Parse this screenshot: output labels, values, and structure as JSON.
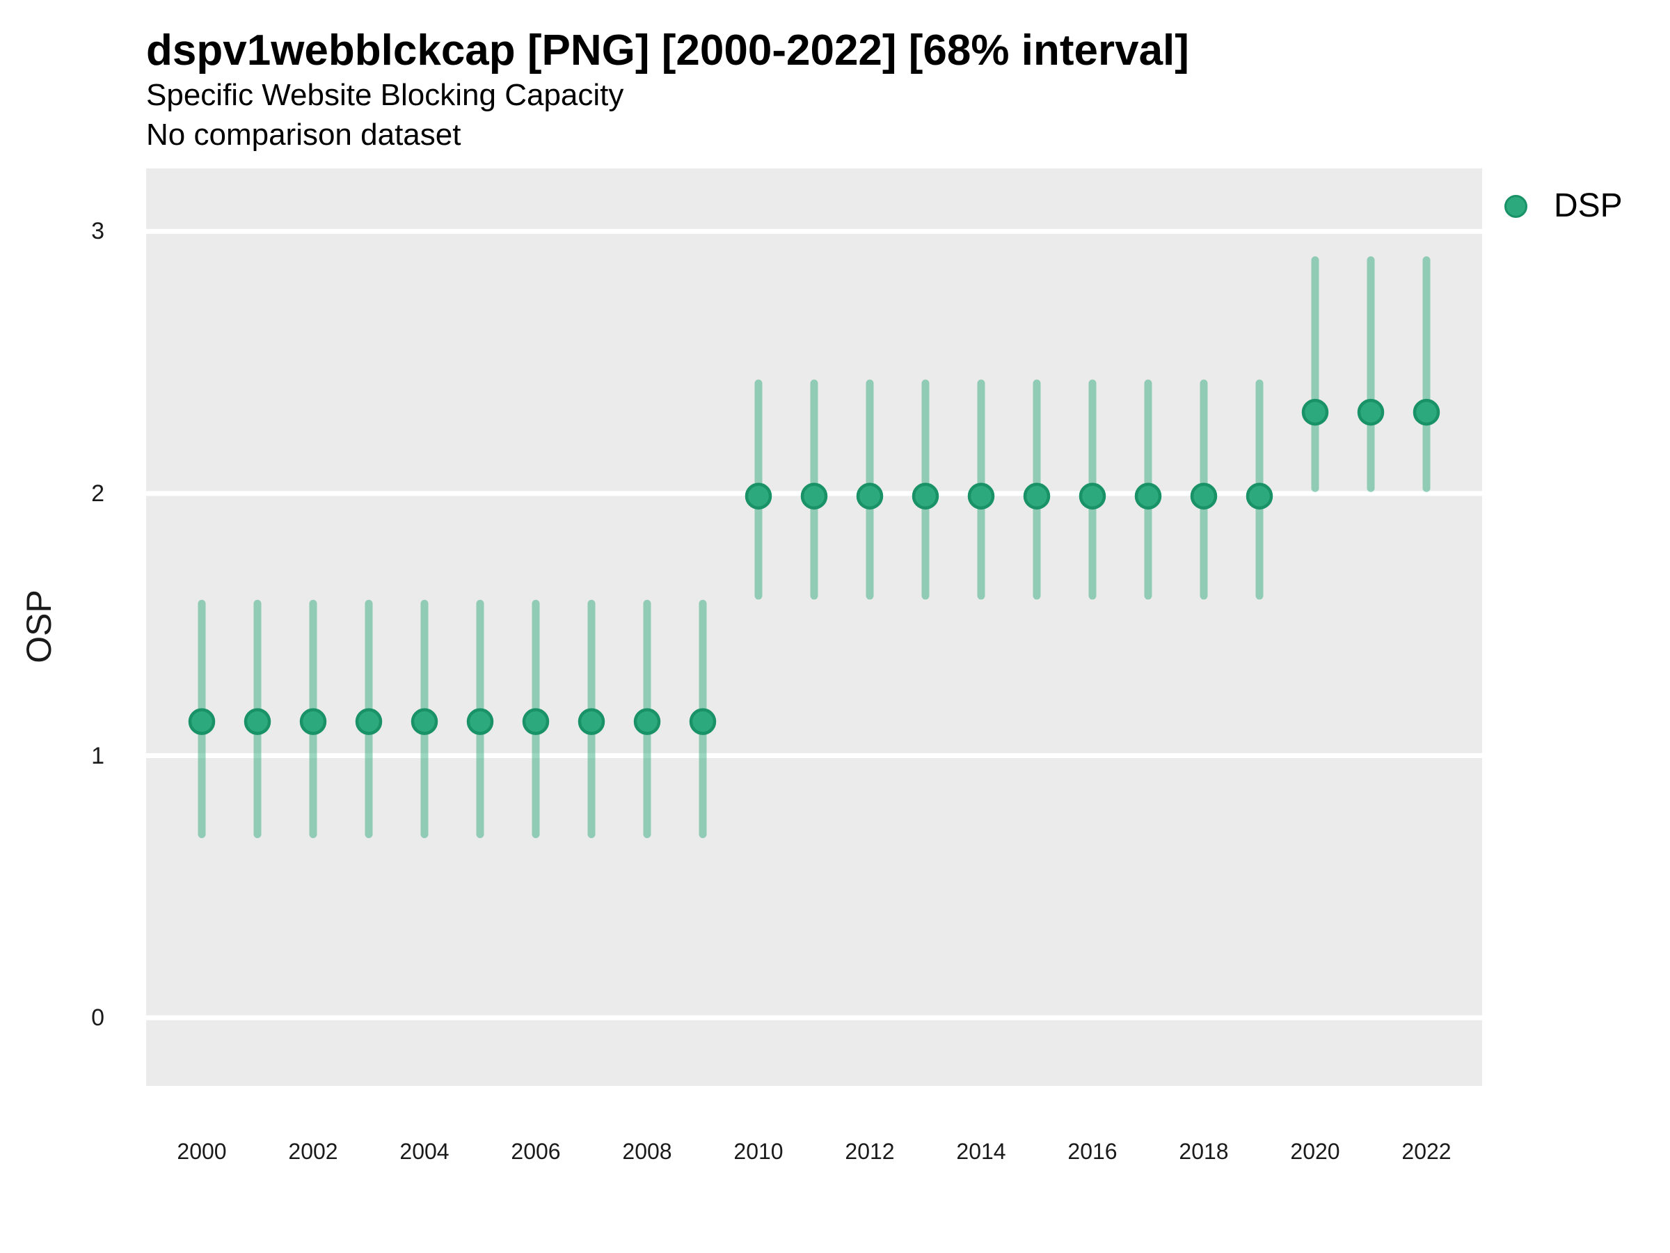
{
  "chart_data": {
    "type": "scatter",
    "title": "dspv1webblckcap [PNG] [2000-2022] [68% interval]",
    "subtitle": "Specific Website Blocking Capacity",
    "note": "No comparison dataset",
    "xlabel": "",
    "ylabel": "OSP",
    "interval_label": "68% interval",
    "legend_position": "right-top",
    "grid": "horizontal-major-only",
    "xlim": [
      1999,
      2023
    ],
    "ylim": [
      -0.26,
      3.24
    ],
    "y_ticks": [
      0,
      1,
      2,
      3
    ],
    "x_tick_labels": [
      2000,
      2002,
      2004,
      2006,
      2008,
      2010,
      2012,
      2014,
      2016,
      2018,
      2020,
      2022
    ],
    "series": [
      {
        "name": "DSP",
        "years": [
          2000,
          2001,
          2002,
          2003,
          2004,
          2005,
          2006,
          2007,
          2008,
          2009,
          2010,
          2011,
          2012,
          2013,
          2014,
          2015,
          2016,
          2017,
          2018,
          2019,
          2020,
          2021,
          2022
        ],
        "estimate": [
          1.13,
          1.13,
          1.13,
          1.13,
          1.13,
          1.13,
          1.13,
          1.13,
          1.13,
          1.13,
          1.99,
          1.99,
          1.99,
          1.99,
          1.99,
          1.99,
          1.99,
          1.99,
          1.99,
          1.99,
          2.31,
          2.31,
          2.31
        ],
        "lower68": [
          0.7,
          0.7,
          0.7,
          0.7,
          0.7,
          0.7,
          0.7,
          0.7,
          0.7,
          0.7,
          1.61,
          1.61,
          1.61,
          1.61,
          1.61,
          1.61,
          1.61,
          1.61,
          1.61,
          1.61,
          2.02,
          2.02,
          2.02
        ],
        "upper68": [
          1.58,
          1.58,
          1.58,
          1.58,
          1.58,
          1.58,
          1.58,
          1.58,
          1.58,
          1.58,
          2.42,
          2.42,
          2.42,
          2.42,
          2.42,
          2.42,
          2.42,
          2.42,
          2.42,
          2.42,
          2.89,
          2.89,
          2.89
        ]
      }
    ]
  },
  "colors": {
    "point_fill": "#2CA97D",
    "point_stroke": "#1A9268",
    "interval_line": "rgba(42,167,123,0.47)",
    "panel_bg": "#EBEBEB",
    "gridline": "#FFFFFF",
    "text": "#000000"
  }
}
